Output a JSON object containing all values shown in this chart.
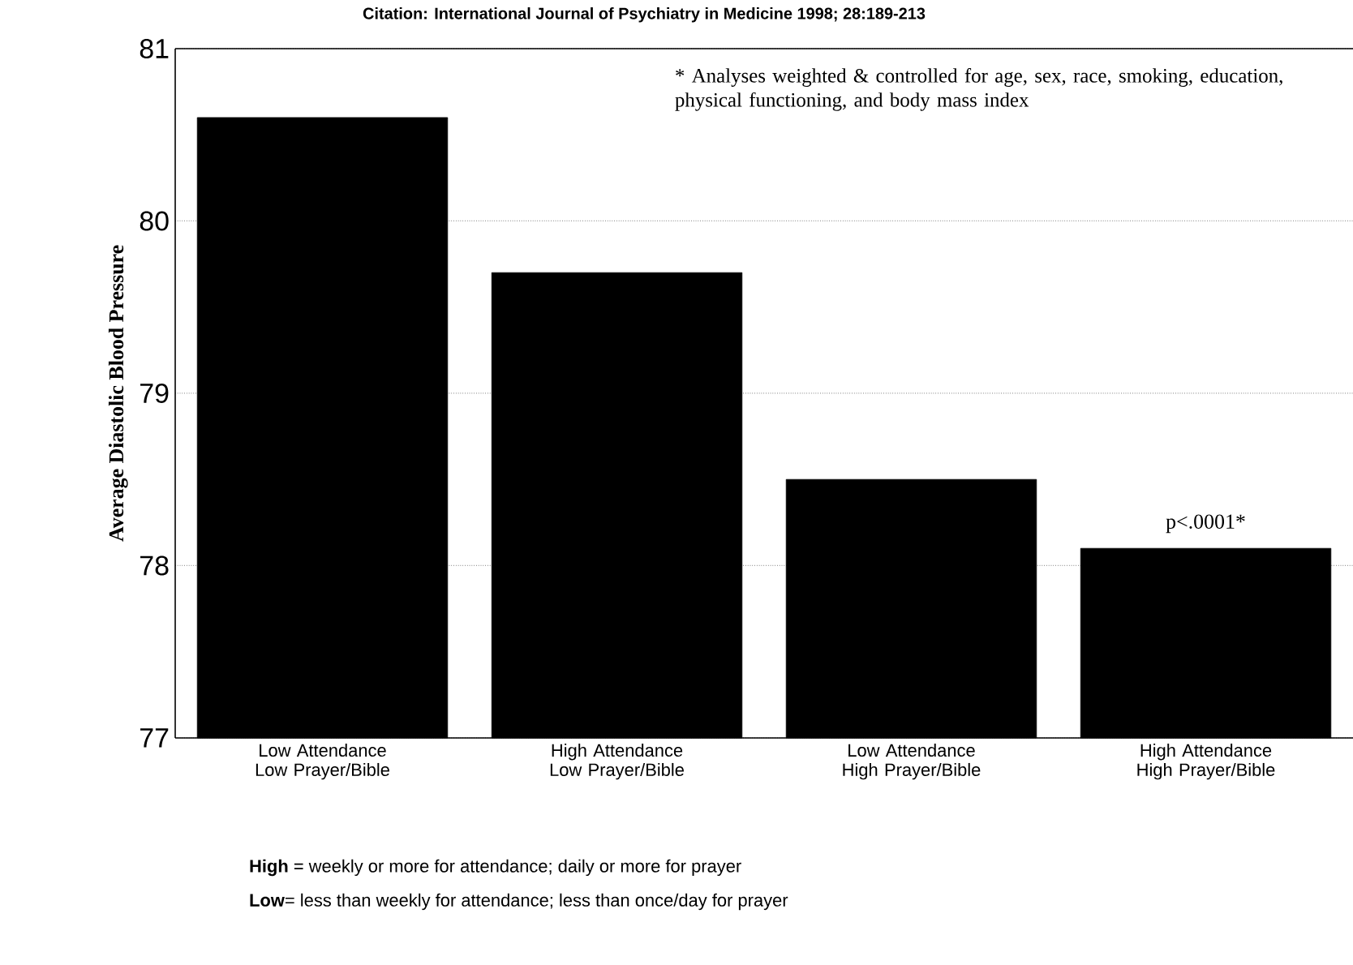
{
  "chart_data": {
    "type": "bar",
    "subtitle": "Citation: International Journal of Psychiatry in Medicine 1998; 28:189-213",
    "ylabel": "Average Diastolic Blood Pressure",
    "categories": [
      "Low Attendance Low Prayer/Bible",
      "High Attendance Low Prayer/Bible",
      "Low Attendance High Prayer/Bible",
      "High Attendance High Prayer/Bible"
    ],
    "values": [
      80.6,
      79.7,
      78.5,
      78.1
    ],
    "color": "#000000",
    "ylim": [
      77,
      81
    ],
    "yticks": [
      77,
      78,
      79,
      80,
      81
    ],
    "grid": "y",
    "annotations": [
      "* Analyses weighted & controlled for age, sex, race, smoking, education, physical functioning, and body mass index",
      {
        "text": "p<.0001*",
        "x": "High Attendance High Prayer/Bible",
        "y": 78.1
      },
      "**High** = weekly or more for attendance; daily or more for prayer",
      "**Low**= less than weekly for attendance; less than once/day for prayer"
    ]
  }
}
